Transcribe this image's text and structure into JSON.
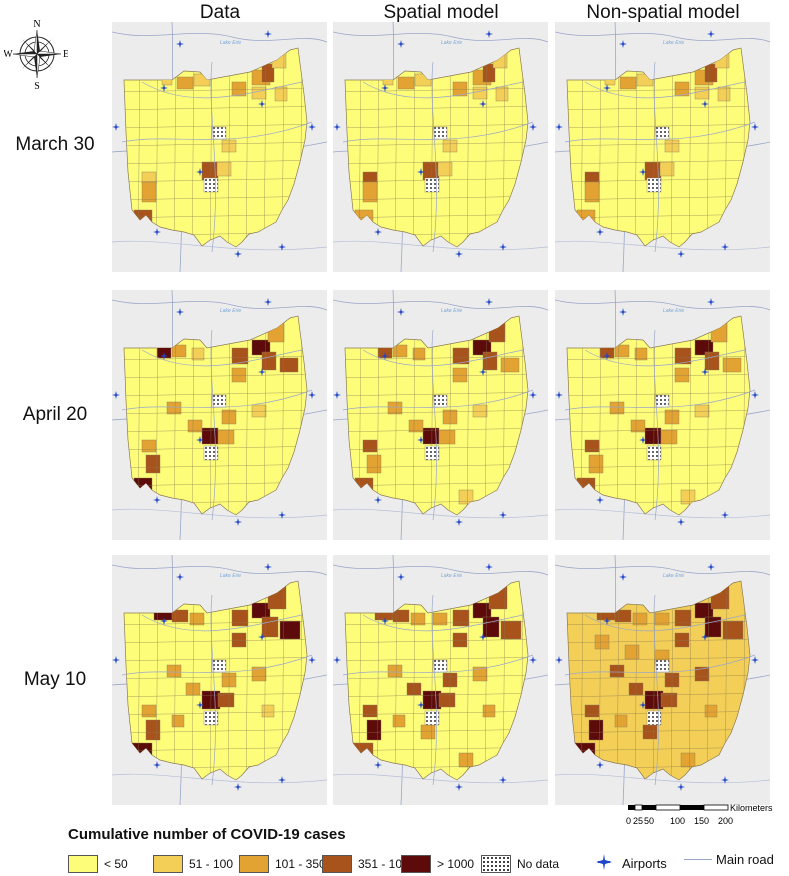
{
  "columns": [
    "Data",
    "Spatial model",
    "Non-spatial model"
  ],
  "rows": [
    "March 30",
    "April 20",
    "May 10"
  ],
  "lake_label": "Lake Erie",
  "compass": {
    "n": "N",
    "s": "S",
    "e": "E",
    "w": "W"
  },
  "scale": {
    "unit": "Kilometers",
    "ticks": [
      "0",
      "25",
      "50",
      "100",
      "150",
      "200"
    ]
  },
  "legend": {
    "title": "Cumulative  number of COVID-19 cases",
    "items": [
      {
        "label": "< 50",
        "color": "#fdfd7a"
      },
      {
        "label": "51 - 100",
        "color": "#f3cf57"
      },
      {
        "label": "101 - 350",
        "color": "#e3a333"
      },
      {
        "label": "351 - 1000",
        "color": "#a8531b"
      },
      {
        "label": "> 1000",
        "color": "#5c0a0a"
      }
    ],
    "nodata": "No data",
    "airports": "Airports",
    "road": "Main road"
  },
  "colors": {
    "background": "#e9e9e9",
    "road": "#9aa7c8",
    "airport": "#1f45c8",
    "border": "#8a7a52"
  },
  "icons": {
    "compass": "compass-rose-icon",
    "airport": "airplane-icon"
  }
}
